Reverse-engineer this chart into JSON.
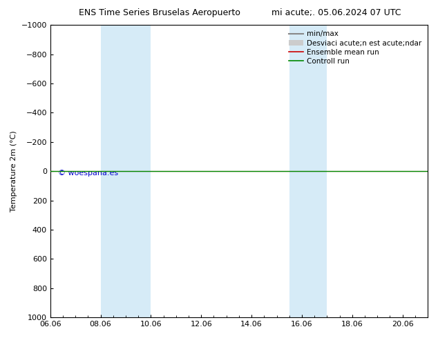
{
  "title_left": "ENS Time Series Bruselas Aeropuerto",
  "title_right": "mi acute;. 05.06.2024 07 UTC",
  "ylabel": "Temperature 2m (°C)",
  "ylim_bottom": 1000,
  "ylim_top": -1000,
  "yticks": [
    -1000,
    -800,
    -600,
    -400,
    -200,
    0,
    200,
    400,
    600,
    800,
    1000
  ],
  "xlabel_dates": [
    "06.06",
    "08.06",
    "10.06",
    "12.06",
    "14.06",
    "16.06",
    "18.06",
    "20.06"
  ],
  "xtick_positions": [
    0,
    2,
    4,
    6,
    8,
    10,
    12,
    14
  ],
  "xlim": [
    0,
    15
  ],
  "shaded_bands": [
    {
      "xstart": 2.0,
      "xend": 2.5
    },
    {
      "xstart": 2.5,
      "xend": 4.0
    },
    {
      "xstart": 9.5,
      "xend": 10.0
    },
    {
      "xstart": 10.0,
      "xend": 11.0
    }
  ],
  "shaded_bands2": [
    {
      "xstart": 2.0,
      "xend": 4.0
    },
    {
      "xstart": 9.5,
      "xend": 11.0
    }
  ],
  "control_run_y": 0,
  "ensemble_mean_y": 0,
  "watermark": "© woespana.es",
  "watermark_color": "#0000cc",
  "background_color": "#ffffff",
  "plot_bg_color": "#ffffff",
  "shade_color": "#d6ebf7",
  "shade_color2": "#c0dcf0",
  "control_run_color": "#008800",
  "ensemble_mean_color": "#cc0000",
  "minmax_color": "#999999",
  "std_color": "#cccccc",
  "legend_labels": [
    "min/max",
    "Desviaci acute;n est acute;ndar",
    "Ensemble mean run",
    "Controll run"
  ],
  "legend_line_colors": [
    "#888888",
    "#bbbbbb",
    "#cc0000",
    "#008800"
  ],
  "title_fontsize": 9,
  "axis_label_fontsize": 8,
  "tick_fontsize": 8,
  "legend_fontsize": 7.5
}
